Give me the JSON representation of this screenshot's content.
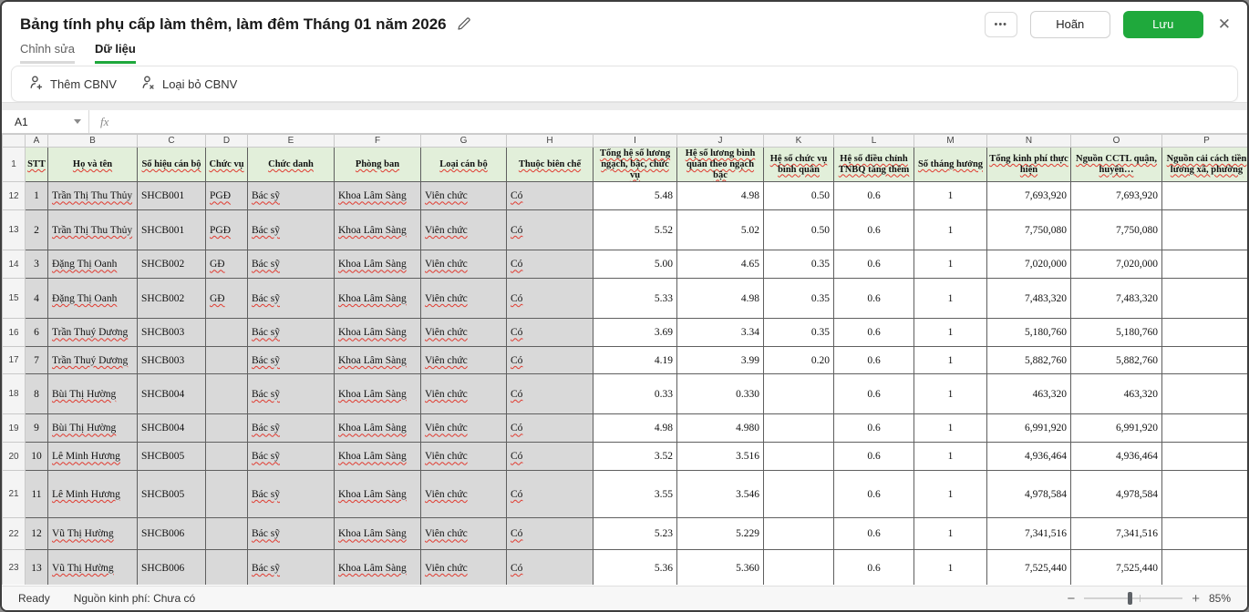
{
  "window": {
    "title": "Bảng tính phụ cấp làm thêm, làm đêm Tháng 01 năm 2026",
    "more_label": "•••",
    "cancel_label": "Hoãn",
    "save_label": "Lưu",
    "close_label": "✕"
  },
  "tabs": [
    {
      "label": "Chỉnh sửa",
      "active": false
    },
    {
      "label": "Dữ liệu",
      "active": true
    }
  ],
  "toolbar": {
    "add_label": "Thêm CBNV",
    "remove_label": "Loại bỏ CBNV"
  },
  "formula_bar": {
    "cell_ref": "A1",
    "fx_label": "fx"
  },
  "sheet": {
    "col_letters": [
      "A",
      "B",
      "C",
      "D",
      "E",
      "F",
      "G",
      "H",
      "I",
      "J",
      "K",
      "L",
      "M",
      "N",
      "O",
      "P"
    ],
    "header_row_number": "1",
    "headers": [
      "STT",
      "Họ và tên",
      "Số hiệu cán bộ",
      "Chức vụ",
      "Chức danh",
      "Phòng ban",
      "Loại cán bộ",
      "Thuộc biên chế",
      "Tổng hệ số lương ngạch, bậc, chức vụ",
      "Hệ số lương bình quân theo ngạch bậc",
      "Hệ số chức vụ bình quân",
      "Hệ số điều chỉnh TNBQ tăng thêm",
      "Số tháng hưởng",
      "Tổng kinh phí thực hiện",
      "Nguồn CCTL quận, huyện…",
      "Nguồn cải cách tiền lương xã, phường"
    ],
    "rows": [
      {
        "n": "12",
        "cells": [
          "1",
          "Trần Thị Thu Thủy",
          "SHCB001",
          "PGĐ",
          "Bác sỹ",
          "Khoa Lâm Sàng",
          "Viên chức",
          "Có",
          "5.48",
          "4.98",
          "0.50",
          "0.6",
          "1",
          "7,693,920",
          "7,693,920",
          ""
        ]
      },
      {
        "n": "13",
        "cells": [
          "2",
          "Trần Thị Thu Thủy",
          "SHCB001",
          "PGĐ",
          "Bác sỹ",
          "Khoa Lâm Sàng",
          "Viên chức",
          "Có",
          "5.52",
          "5.02",
          "0.50",
          "0.6",
          "1",
          "7,750,080",
          "7,750,080",
          ""
        ]
      },
      {
        "n": "14",
        "cells": [
          "3",
          "Đặng Thị Oanh",
          "SHCB002",
          "GĐ",
          "Bác sỹ",
          "Khoa Lâm Sàng",
          "Viên chức",
          "Có",
          "5.00",
          "4.65",
          "0.35",
          "0.6",
          "1",
          "7,020,000",
          "7,020,000",
          ""
        ]
      },
      {
        "n": "15",
        "cells": [
          "4",
          "Đặng Thị Oanh",
          "SHCB002",
          "GĐ",
          "Bác sỹ",
          "Khoa Lâm Sàng",
          "Viên chức",
          "Có",
          "5.33",
          "4.98",
          "0.35",
          "0.6",
          "1",
          "7,483,320",
          "7,483,320",
          ""
        ]
      },
      {
        "n": "16",
        "cells": [
          "6",
          "Trần Thuý Dương",
          "SHCB003",
          "",
          "Bác sỹ",
          "Khoa Lâm Sàng",
          "Viên chức",
          "Có",
          "3.69",
          "3.34",
          "0.35",
          "0.6",
          "1",
          "5,180,760",
          "5,180,760",
          ""
        ]
      },
      {
        "n": "17",
        "cells": [
          "7",
          "Trần Thuý Dương",
          "SHCB003",
          "",
          "Bác sỹ",
          "Khoa Lâm Sàng",
          "Viên chức",
          "Có",
          "4.19",
          "3.99",
          "0.20",
          "0.6",
          "1",
          "5,882,760",
          "5,882,760",
          ""
        ]
      },
      {
        "n": "18",
        "cells": [
          "8",
          "Bùi Thị Hường",
          "SHCB004",
          "",
          "Bác sỹ",
          "Khoa Lâm Sàng",
          "Viên chức",
          "Có",
          "0.33",
          "0.330",
          "",
          "0.6",
          "1",
          "463,320",
          "463,320",
          ""
        ]
      },
      {
        "n": "19",
        "cells": [
          "9",
          "Bùi Thị Hường",
          "SHCB004",
          "",
          "Bác sỹ",
          "Khoa Lâm Sàng",
          "Viên chức",
          "Có",
          "4.98",
          "4.980",
          "",
          "0.6",
          "1",
          "6,991,920",
          "6,991,920",
          ""
        ]
      },
      {
        "n": "20",
        "cells": [
          "10",
          "Lê Minh Hương",
          "SHCB005",
          "",
          "Bác sỹ",
          "Khoa Lâm Sàng",
          "Viên chức",
          "Có",
          "3.52",
          "3.516",
          "",
          "0.6",
          "1",
          "4,936,464",
          "4,936,464",
          ""
        ]
      },
      {
        "n": "21",
        "cells": [
          "11",
          "Lê Minh Hương",
          "SHCB005",
          "",
          "Bác sỹ",
          "Khoa Lâm Sàng",
          "Viên chức",
          "Có",
          "3.55",
          "3.546",
          "",
          "0.6",
          "1",
          "4,978,584",
          "4,978,584",
          ""
        ]
      },
      {
        "n": "22",
        "cells": [
          "12",
          "Vũ Thị Hường",
          "SHCB006",
          "",
          "Bác sỹ",
          "Khoa Lâm Sàng",
          "Viên chức",
          "Có",
          "5.23",
          "5.229",
          "",
          "0.6",
          "1",
          "7,341,516",
          "7,341,516",
          ""
        ]
      },
      {
        "n": "23",
        "cells": [
          "13",
          "Vũ Thị Hường",
          "SHCB006",
          "",
          "Bác sỹ",
          "Khoa Lâm Sàng",
          "Viên chức",
          "Có",
          "5.36",
          "5.360",
          "",
          "0.6",
          "1",
          "7,525,440",
          "7,525,440",
          ""
        ]
      }
    ]
  },
  "status_bar": {
    "ready": "Ready",
    "fund_source": "Nguồn kinh phí: Chưa có",
    "zoom_out": "−",
    "zoom_in": "+",
    "zoom_pct": "85%"
  }
}
